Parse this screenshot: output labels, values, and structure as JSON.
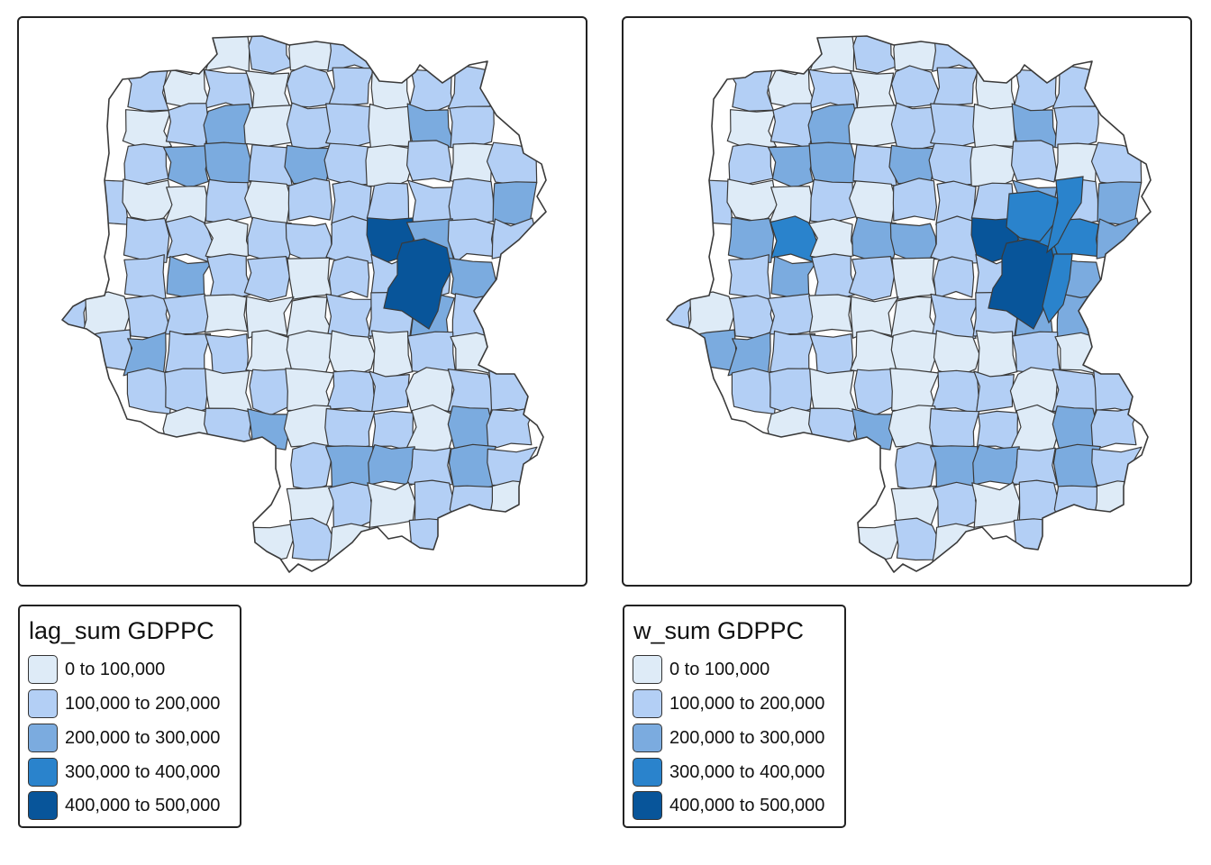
{
  "colors": {
    "c1": "#deebf7",
    "c2": "#b3cff5",
    "c3": "#7babdf",
    "c4": "#2a83cc",
    "c5": "#08559a",
    "border": "#3a3a3a"
  },
  "legend_classes": [
    {
      "label": "0 to 100,000",
      "color": "#deebf7"
    },
    {
      "label": "100,000 to 200,000",
      "color": "#b3cff5"
    },
    {
      "label": "200,000 to 300,000",
      "color": "#7babdf"
    },
    {
      "label": "300,000 to 400,000",
      "color": "#2a83cc"
    },
    {
      "label": "400,000 to 500,000",
      "color": "#08559a"
    }
  ],
  "maps": [
    {
      "legend_title": "lag_sum GDPPC",
      "region_classes": [
        1,
        2,
        1,
        2,
        2,
        1,
        2,
        1,
        2,
        2,
        1,
        2,
        2,
        1,
        2,
        3,
        1,
        2,
        2,
        1,
        3,
        2,
        2,
        3,
        3,
        2,
        3,
        2,
        1,
        2,
        1,
        2,
        2,
        1,
        1,
        2,
        1,
        2,
        2,
        2,
        2,
        2,
        3,
        2,
        2,
        1,
        2,
        2,
        2,
        5,
        3,
        2,
        2,
        2,
        3,
        2,
        2,
        1,
        2,
        2,
        2,
        3,
        2,
        1,
        2,
        2,
        1,
        1,
        1,
        2,
        2,
        3,
        2,
        2,
        3,
        2,
        2,
        1,
        1,
        1
      ]
    },
    {
      "legend_title": "w_sum GDPPC",
      "region_classes": [
        1,
        2,
        1,
        2,
        2,
        1,
        2,
        1,
        2,
        2,
        1,
        2,
        2,
        1,
        2,
        3,
        1,
        2,
        2,
        1,
        3,
        2,
        2,
        3,
        3,
        2,
        3,
        2,
        1,
        2,
        1,
        2,
        2,
        1,
        1,
        2,
        1,
        2,
        2,
        2,
        3,
        2,
        3,
        3,
        4,
        1,
        3,
        3,
        2,
        5,
        4,
        4,
        3,
        2,
        3,
        2,
        2,
        1,
        2,
        2,
        2,
        3,
        2,
        1,
        2,
        2,
        1,
        1,
        1,
        2,
        2,
        3,
        3,
        3,
        3,
        2,
        2,
        1,
        1,
        1
      ]
    }
  ]
}
